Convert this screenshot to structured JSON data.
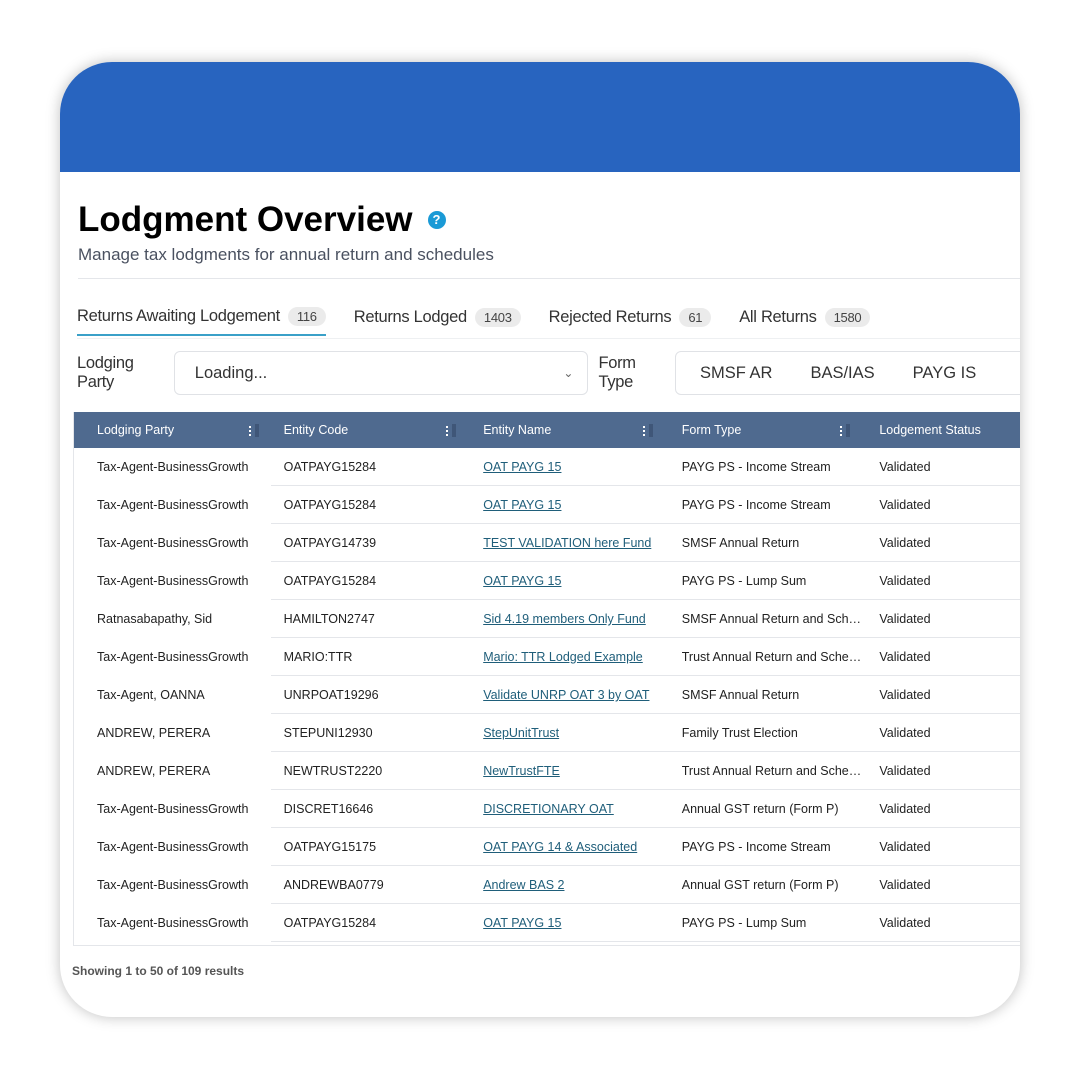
{
  "header": {
    "title": "Lodgment Overview",
    "subtitle": "Manage tax lodgments for annual return and schedules",
    "help_icon": "question-circle-icon",
    "brand_color": "#2864bf"
  },
  "tabs": [
    {
      "label": "Returns Awaiting Lodgement",
      "count": "116",
      "active": true
    },
    {
      "label": "Returns Lodged",
      "count": "1403"
    },
    {
      "label": "Rejected Returns",
      "count": "61"
    },
    {
      "label": "All Returns",
      "count": "1580"
    }
  ],
  "filters": {
    "lodging_party_label": "Lodging Party",
    "lodging_party_value": "Loading...",
    "form_type_label": "Form Type",
    "form_types": [
      "SMSF AR",
      "BAS/IAS",
      "PAYG IS"
    ]
  },
  "table": {
    "columns": [
      "Lodging Party",
      "Entity Code",
      "Entity Name",
      "Form Type",
      "Lodgement Status"
    ],
    "rows": [
      [
        "Tax-Agent-BusinessGrowth",
        "OATPAYG15284",
        "OAT PAYG 15",
        "PAYG PS - Income Stream",
        "Validated"
      ],
      [
        "Tax-Agent-BusinessGrowth",
        "OATPAYG15284",
        "OAT PAYG 15",
        "PAYG PS - Income Stream",
        "Validated"
      ],
      [
        "Tax-Agent-BusinessGrowth",
        "OATPAYG14739",
        "TEST VALIDATION here Fund",
        "SMSF Annual Return",
        "Validated"
      ],
      [
        "Tax-Agent-BusinessGrowth",
        "OATPAYG15284",
        "OAT PAYG 15",
        "PAYG PS - Lump Sum",
        "Validated"
      ],
      [
        "Ratnasabapathy, Sid",
        "HAMILTON2747",
        "Sid 4.19 members Only Fund",
        "SMSF Annual Return and Schedules",
        "Validated"
      ],
      [
        "Tax-Agent-BusinessGrowth",
        "MARIO:TTR",
        "Mario: TTR Lodged Example",
        "Trust Annual Return and Schedules",
        "Validated"
      ],
      [
        "Tax-Agent, OANNA",
        "UNRPOAT19296",
        "Validate UNRP OAT 3 by OAT",
        "SMSF Annual Return",
        "Validated"
      ],
      [
        "ANDREW, PERERA",
        "STEPUNI12930",
        "StepUnitTrust",
        "Family Trust Election",
        "Validated"
      ],
      [
        "ANDREW, PERERA",
        "NEWTRUST2220",
        "NewTrustFTE",
        "Trust Annual Return and Schedules",
        "Validated"
      ],
      [
        "Tax-Agent-BusinessGrowth",
        "DISCRET16646",
        "DISCRETIONARY OAT",
        "Annual GST return (Form P)",
        "Validated"
      ],
      [
        "Tax-Agent-BusinessGrowth",
        "OATPAYG15175",
        "OAT PAYG 14 & Associated",
        "PAYG PS - Income Stream",
        "Validated"
      ],
      [
        "Tax-Agent-BusinessGrowth",
        "ANDREWBA0779",
        "Andrew BAS 2",
        "Annual GST return (Form P)",
        "Validated"
      ],
      [
        "Tax-Agent-BusinessGrowth",
        "OATPAYG15284",
        "OAT PAYG 15",
        "PAYG PS - Lump Sum",
        "Validated"
      ]
    ]
  },
  "footer": {
    "summary": "Showing 1 to 50 of 109 results"
  }
}
